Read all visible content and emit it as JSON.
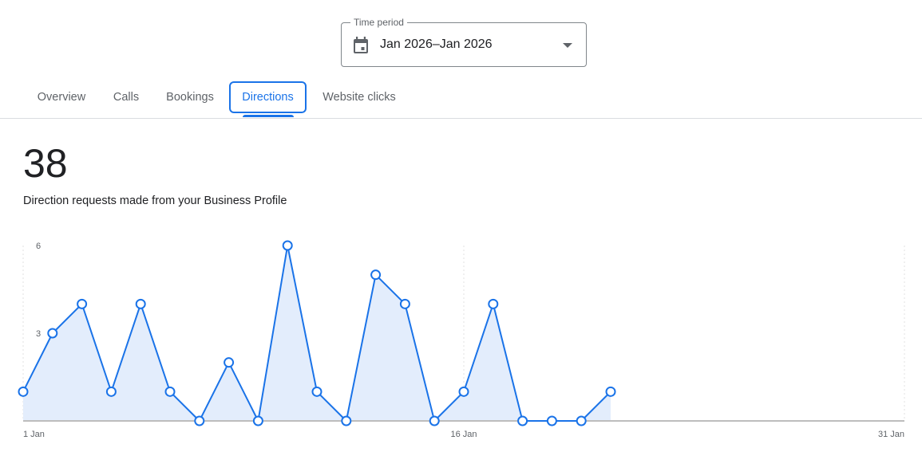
{
  "time_period": {
    "label": "Time period",
    "value": "Jan 2026–Jan 2026",
    "icon": "calendar-icon"
  },
  "tabs": [
    {
      "label": "Overview",
      "active": false
    },
    {
      "label": "Calls",
      "active": false
    },
    {
      "label": "Bookings",
      "active": false
    },
    {
      "label": "Directions",
      "active": true
    },
    {
      "label": "Website clicks",
      "active": false
    }
  ],
  "metric": {
    "value": "38",
    "description": "Direction requests made from your Business Profile"
  },
  "colors": {
    "accent": "#1a73e8",
    "area_fill": "#e3edfc",
    "axis": "#bdbdbd",
    "text_secondary": "#5f6368"
  },
  "chart_data": {
    "type": "area",
    "title": "Direction requests made from your Business Profile",
    "xlabel": "",
    "ylabel": "",
    "x": [
      "1 Jan",
      "2 Jan",
      "3 Jan",
      "4 Jan",
      "5 Jan",
      "6 Jan",
      "7 Jan",
      "8 Jan",
      "9 Jan",
      "10 Jan",
      "11 Jan",
      "12 Jan",
      "13 Jan",
      "14 Jan",
      "15 Jan",
      "16 Jan",
      "17 Jan",
      "18 Jan",
      "19 Jan",
      "20 Jan",
      "21 Jan"
    ],
    "series": [
      {
        "name": "Direction requests",
        "values": [
          1,
          3,
          4,
          1,
          4,
          1,
          0,
          2,
          0,
          6,
          1,
          0,
          5,
          4,
          0,
          1,
          4,
          0,
          0,
          0,
          1
        ]
      }
    ],
    "x_ticks": [
      "1 Jan",
      "16 Jan",
      "31 Jan"
    ],
    "y_ticks": [
      "3",
      "6"
    ],
    "ylim": [
      0,
      6
    ],
    "xlim": [
      "1 Jan",
      "31 Jan"
    ],
    "total": 38,
    "grid": "vertical dotted lines at 1 Jan, 16 Jan, 31 Jan",
    "legend": "none"
  }
}
